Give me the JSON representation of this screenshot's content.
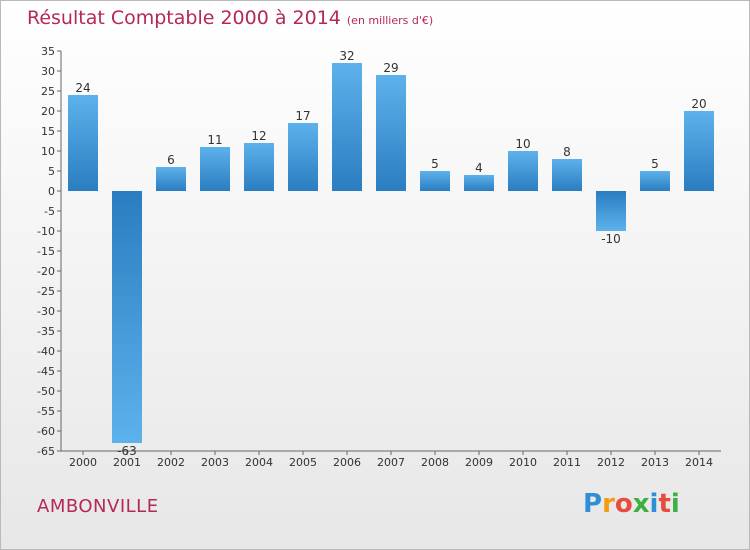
{
  "title": "Résultat Comptable 2000 à 2014",
  "unit_note": "(en milliers d'€)",
  "commune": "AMBONVILLE",
  "logo": {
    "letters": [
      "P",
      "r",
      "o",
      "x",
      "i",
      "t",
      "i"
    ],
    "colors": [
      "#2e8fd6",
      "#f39c12",
      "#e74c3c",
      "#3cb043",
      "#2e8fd6",
      "#e74c3c",
      "#3cb043"
    ]
  },
  "chart_data": {
    "type": "bar",
    "title": "Résultat Comptable 2000 à 2014",
    "xlabel": "",
    "ylabel": "",
    "categories": [
      "2000",
      "2001",
      "2002",
      "2003",
      "2004",
      "2005",
      "2006",
      "2007",
      "2008",
      "2009",
      "2010",
      "2011",
      "2012",
      "2013",
      "2014"
    ],
    "values": [
      24,
      -63,
      6,
      11,
      12,
      17,
      32,
      29,
      5,
      4,
      10,
      8,
      -10,
      5,
      20
    ],
    "ylim": [
      -65,
      35
    ],
    "yticks": [
      35,
      30,
      25,
      20,
      15,
      10,
      5,
      0,
      -5,
      -10,
      -15,
      -20,
      -25,
      -30,
      -35,
      -40,
      -45,
      -50,
      -55,
      -60,
      -65
    ],
    "grid": false,
    "legend": "none",
    "bar_color": "#3b92d6"
  }
}
